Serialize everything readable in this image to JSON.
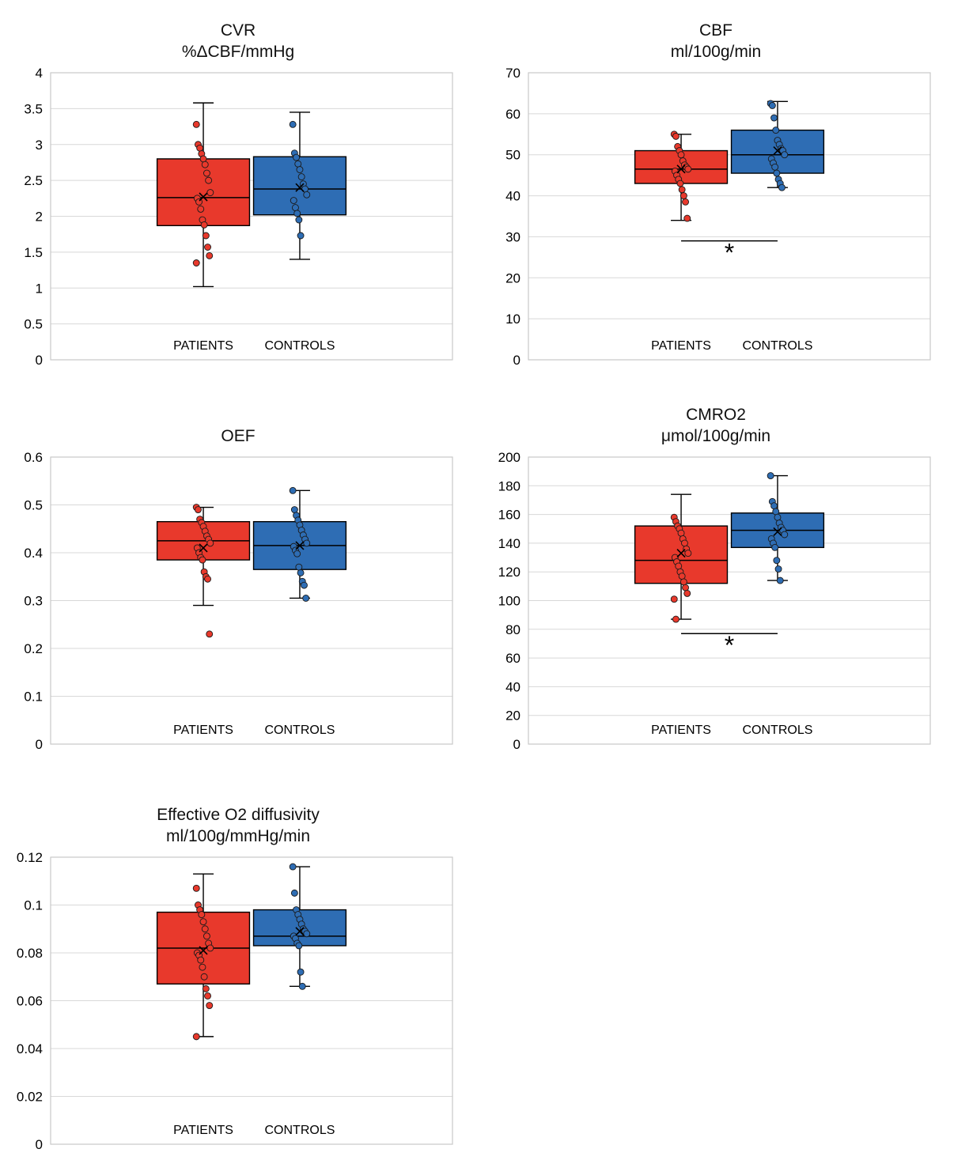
{
  "page": {
    "background": "#ffffff",
    "patient_color": "#E8392C",
    "control_color": "#2E6DB4"
  },
  "chart_data": [
    {
      "type": "box",
      "title": "CVR",
      "subtitle": "%ΔCBF/mmHg",
      "ylim": [
        0,
        4
      ],
      "ytick_step": 0.5,
      "grid": true,
      "categories": [
        "PATIENTS",
        "CONTROLS"
      ],
      "significance": null,
      "groups": [
        {
          "label": "PATIENTS",
          "color": "#E8392C",
          "whisker_low": 1.02,
          "q1": 1.87,
          "median": 2.26,
          "q3": 2.8,
          "whisker_high": 3.58,
          "mean": 2.27,
          "points": [
            3.28,
            3.0,
            2.95,
            2.87,
            2.8,
            2.72,
            2.6,
            2.5,
            2.33,
            2.25,
            2.2,
            2.1,
            1.95,
            1.88,
            1.73,
            1.57,
            1.45,
            1.35
          ]
        },
        {
          "label": "CONTROLS",
          "color": "#2E6DB4",
          "whisker_low": 1.4,
          "q1": 2.02,
          "median": 2.38,
          "q3": 2.83,
          "whisker_high": 3.45,
          "mean": 2.4,
          "points": [
            3.28,
            2.88,
            2.82,
            2.73,
            2.65,
            2.55,
            2.45,
            2.38,
            2.3,
            2.22,
            2.12,
            2.04,
            1.95,
            1.73
          ]
        }
      ]
    },
    {
      "type": "box",
      "title": "CBF",
      "subtitle": "ml/100g/min",
      "ylim": [
        0,
        70
      ],
      "ytick_step": 10,
      "grid": true,
      "categories": [
        "PATIENTS",
        "CONTROLS"
      ],
      "significance": {
        "y": 29,
        "label": "*"
      },
      "groups": [
        {
          "label": "PATIENTS",
          "color": "#E8392C",
          "whisker_low": 34,
          "q1": 43,
          "median": 46.5,
          "q3": 51,
          "whisker_high": 55,
          "mean": 46.5,
          "points": [
            55,
            54.5,
            52,
            51,
            50,
            48.5,
            47.5,
            47,
            46.5,
            46,
            45,
            44,
            43,
            41.5,
            40,
            38.5,
            34.5
          ]
        },
        {
          "label": "CONTROLS",
          "color": "#2E6DB4",
          "whisker_low": 42,
          "q1": 45.5,
          "median": 50,
          "q3": 56,
          "whisker_high": 63,
          "mean": 51,
          "points": [
            62.5,
            62,
            59,
            56,
            53.5,
            52.5,
            51.5,
            51,
            50,
            49,
            48,
            47,
            45.5,
            44,
            43,
            42
          ]
        }
      ]
    },
    {
      "type": "box",
      "title": "OEF",
      "subtitle": "",
      "ylim": [
        0,
        0.6
      ],
      "ytick_step": 0.1,
      "grid": true,
      "categories": [
        "PATIENTS",
        "CONTROLS"
      ],
      "significance": null,
      "groups": [
        {
          "label": "PATIENTS",
          "color": "#E8392C",
          "whisker_low": 0.29,
          "q1": 0.385,
          "median": 0.425,
          "q3": 0.465,
          "whisker_high": 0.495,
          "mean": 0.41,
          "points": [
            0.495,
            0.49,
            0.47,
            0.463,
            0.455,
            0.445,
            0.435,
            0.428,
            0.42,
            0.41,
            0.4,
            0.39,
            0.385,
            0.36,
            0.35,
            0.345,
            0.23
          ]
        },
        {
          "label": "CONTROLS",
          "color": "#2E6DB4",
          "whisker_low": 0.305,
          "q1": 0.365,
          "median": 0.415,
          "q3": 0.465,
          "whisker_high": 0.53,
          "mean": 0.415,
          "points": [
            0.53,
            0.49,
            0.478,
            0.468,
            0.458,
            0.447,
            0.437,
            0.428,
            0.42,
            0.413,
            0.405,
            0.398,
            0.37,
            0.358,
            0.34,
            0.332,
            0.305
          ]
        }
      ]
    },
    {
      "type": "box",
      "title": "CMRO2",
      "subtitle": "μmol/100g/min",
      "ylim": [
        0,
        200
      ],
      "ytick_step": 20,
      "grid": true,
      "categories": [
        "PATIENTS",
        "CONTROLS"
      ],
      "significance": {
        "y": 77,
        "label": "*"
      },
      "groups": [
        {
          "label": "PATIENTS",
          "color": "#E8392C",
          "whisker_low": 87,
          "q1": 112,
          "median": 128,
          "q3": 152,
          "whisker_high": 174,
          "mean": 133,
          "points": [
            158,
            155,
            152,
            150,
            147,
            143,
            140,
            136,
            133,
            130,
            127,
            124,
            120,
            117,
            113,
            109,
            105,
            101,
            87
          ]
        },
        {
          "label": "CONTROLS",
          "color": "#2E6DB4",
          "whisker_low": 114,
          "q1": 137,
          "median": 149,
          "q3": 161,
          "whisker_high": 187,
          "mean": 148,
          "points": [
            187,
            169,
            166,
            162,
            158,
            154,
            151,
            149,
            146,
            143,
            140,
            137,
            128,
            122,
            114
          ]
        }
      ]
    },
    {
      "type": "box",
      "title": "Effective O2 diffusivity",
      "subtitle": "ml/100g/mmHg/min",
      "ylim": [
        0,
        0.12
      ],
      "ytick_step": 0.02,
      "grid": true,
      "categories": [
        "PATIENTS",
        "CONTROLS"
      ],
      "significance": null,
      "groups": [
        {
          "label": "PATIENTS",
          "color": "#E8392C",
          "whisker_low": 0.045,
          "q1": 0.067,
          "median": 0.082,
          "q3": 0.097,
          "whisker_high": 0.113,
          "mean": 0.081,
          "points": [
            0.107,
            0.1,
            0.098,
            0.096,
            0.093,
            0.09,
            0.087,
            0.084,
            0.082,
            0.08,
            0.079,
            0.077,
            0.074,
            0.07,
            0.065,
            0.062,
            0.058,
            0.045
          ]
        },
        {
          "label": "CONTROLS",
          "color": "#2E6DB4",
          "whisker_low": 0.066,
          "q1": 0.083,
          "median": 0.087,
          "q3": 0.098,
          "whisker_high": 0.116,
          "mean": 0.089,
          "points": [
            0.116,
            0.105,
            0.098,
            0.096,
            0.094,
            0.092,
            0.09,
            0.089,
            0.088,
            0.087,
            0.086,
            0.084,
            0.083,
            0.072,
            0.066
          ]
        }
      ]
    }
  ]
}
